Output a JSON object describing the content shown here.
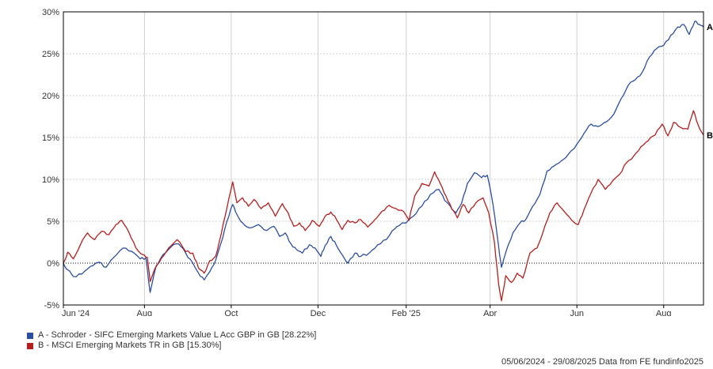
{
  "chart_data": {
    "type": "line",
    "ylim": [
      -5,
      30
    ],
    "yticks": [
      -5,
      0,
      5,
      10,
      15,
      20,
      25,
      30
    ],
    "ytick_labels": [
      "-5%",
      "0%",
      "5%",
      "10%",
      "15%",
      "20%",
      "25%",
      "30%"
    ],
    "xlim": [
      "2024-06-05",
      "2025-08-29"
    ],
    "xticks": [
      {
        "date": "2024-06-05",
        "label": "Jun '24"
      },
      {
        "date": "2024-08-01",
        "label": "Aug"
      },
      {
        "date": "2024-10-01",
        "label": "Oct"
      },
      {
        "date": "2024-12-01",
        "label": "Dec"
      },
      {
        "date": "2025-02-01",
        "label": "Feb '25"
      },
      {
        "date": "2025-04-01",
        "label": "Apr"
      },
      {
        "date": "2025-06-01",
        "label": "Jun"
      },
      {
        "date": "2025-08-01",
        "label": "Aug"
      }
    ],
    "grid": true,
    "zero_line": "dotted",
    "series": [
      {
        "key": "A",
        "name": "A - Schroder - SIFC Emerging Markets Value L Acc GBP in GB [28.22%]",
        "color": "#2b4ea2",
        "end_label": "A",
        "points": [
          [
            "2024-06-05",
            0.0
          ],
          [
            "2024-06-08",
            -0.8
          ],
          [
            "2024-06-12",
            -1.6
          ],
          [
            "2024-06-18",
            -1.3
          ],
          [
            "2024-06-24",
            -0.4
          ],
          [
            "2024-06-30",
            0.1
          ],
          [
            "2024-07-05",
            -0.5
          ],
          [
            "2024-07-10",
            0.6
          ],
          [
            "2024-07-17",
            1.8
          ],
          [
            "2024-07-23",
            1.4
          ],
          [
            "2024-07-29",
            0.5
          ],
          [
            "2024-08-02",
            0.6
          ],
          [
            "2024-08-05",
            -3.5
          ],
          [
            "2024-08-09",
            -0.5
          ],
          [
            "2024-08-14",
            1.0
          ],
          [
            "2024-08-20",
            2.0
          ],
          [
            "2024-08-25",
            2.3
          ],
          [
            "2024-08-30",
            1.2
          ],
          [
            "2024-09-04",
            0.0
          ],
          [
            "2024-09-08",
            -1.2
          ],
          [
            "2024-09-12",
            -2.0
          ],
          [
            "2024-09-16",
            -1.0
          ],
          [
            "2024-09-20",
            0.3
          ],
          [
            "2024-09-25",
            3.0
          ],
          [
            "2024-09-28",
            5.0
          ],
          [
            "2024-10-02",
            7.0
          ],
          [
            "2024-10-05",
            5.8
          ],
          [
            "2024-10-09",
            4.8
          ],
          [
            "2024-10-14",
            4.2
          ],
          [
            "2024-10-20",
            4.6
          ],
          [
            "2024-10-26",
            3.9
          ],
          [
            "2024-10-31",
            4.4
          ],
          [
            "2024-11-04",
            3.2
          ],
          [
            "2024-11-08",
            3.6
          ],
          [
            "2024-11-12",
            2.3
          ],
          [
            "2024-11-16",
            1.6
          ],
          [
            "2024-11-20",
            1.2
          ],
          [
            "2024-11-25",
            2.2
          ],
          [
            "2024-11-29",
            1.8
          ],
          [
            "2024-12-03",
            0.8
          ],
          [
            "2024-12-06",
            2.1
          ],
          [
            "2024-12-10",
            3.2
          ],
          [
            "2024-12-14",
            2.1
          ],
          [
            "2024-12-18",
            1.0
          ],
          [
            "2024-12-22",
            0.0
          ],
          [
            "2024-12-27",
            1.2
          ],
          [
            "2024-12-31",
            0.8
          ],
          [
            "2025-01-06",
            1.2
          ],
          [
            "2025-01-12",
            2.2
          ],
          [
            "2025-01-18",
            2.8
          ],
          [
            "2025-01-24",
            4.1
          ],
          [
            "2025-01-28",
            4.6
          ],
          [
            "2025-02-01",
            4.8
          ],
          [
            "2025-02-06",
            5.6
          ],
          [
            "2025-02-12",
            6.8
          ],
          [
            "2025-02-18",
            8.2
          ],
          [
            "2025-02-24",
            8.8
          ],
          [
            "2025-02-28",
            7.5
          ],
          [
            "2025-03-04",
            6.8
          ],
          [
            "2025-03-08",
            6.0
          ],
          [
            "2025-03-12",
            7.2
          ],
          [
            "2025-03-16",
            9.5
          ],
          [
            "2025-03-21",
            10.8
          ],
          [
            "2025-03-26",
            10.2
          ],
          [
            "2025-03-30",
            10.5
          ],
          [
            "2025-04-03",
            7.0
          ],
          [
            "2025-04-07",
            2.0
          ],
          [
            "2025-04-09",
            -0.5
          ],
          [
            "2025-04-13",
            1.8
          ],
          [
            "2025-04-17",
            3.6
          ],
          [
            "2025-04-22",
            4.8
          ],
          [
            "2025-04-26",
            5.2
          ],
          [
            "2025-05-01",
            6.8
          ],
          [
            "2025-05-06",
            8.2
          ],
          [
            "2025-05-11",
            11.0
          ],
          [
            "2025-05-16",
            11.6
          ],
          [
            "2025-05-21",
            12.2
          ],
          [
            "2025-05-26",
            13.0
          ],
          [
            "2025-06-01",
            14.2
          ],
          [
            "2025-06-06",
            15.5
          ],
          [
            "2025-06-11",
            16.6
          ],
          [
            "2025-06-16",
            16.3
          ],
          [
            "2025-06-22",
            16.9
          ],
          [
            "2025-06-27",
            17.8
          ],
          [
            "2025-07-02",
            19.6
          ],
          [
            "2025-07-07",
            21.2
          ],
          [
            "2025-07-12",
            21.9
          ],
          [
            "2025-07-17",
            22.8
          ],
          [
            "2025-07-22",
            24.6
          ],
          [
            "2025-07-27",
            25.6
          ],
          [
            "2025-08-01",
            26.0
          ],
          [
            "2025-08-06",
            27.2
          ],
          [
            "2025-08-11",
            28.2
          ],
          [
            "2025-08-15",
            28.5
          ],
          [
            "2025-08-19",
            27.3
          ],
          [
            "2025-08-23",
            28.9
          ],
          [
            "2025-08-26",
            28.5
          ],
          [
            "2025-08-29",
            28.2
          ]
        ]
      },
      {
        "key": "B",
        "name": "B - MSCI Emerging Markets TR in GB [15.30%]",
        "color": "#b51e1e",
        "end_label": "B",
        "points": [
          [
            "2024-06-05",
            0.0
          ],
          [
            "2024-06-08",
            1.3
          ],
          [
            "2024-06-12",
            0.5
          ],
          [
            "2024-06-17",
            2.2
          ],
          [
            "2024-06-22",
            3.6
          ],
          [
            "2024-06-27",
            2.8
          ],
          [
            "2024-07-02",
            3.8
          ],
          [
            "2024-07-07",
            3.4
          ],
          [
            "2024-07-12",
            4.6
          ],
          [
            "2024-07-16",
            5.1
          ],
          [
            "2024-07-21",
            3.7
          ],
          [
            "2024-07-26",
            1.8
          ],
          [
            "2024-07-31",
            1.0
          ],
          [
            "2024-08-03",
            0.7
          ],
          [
            "2024-08-05",
            -2.2
          ],
          [
            "2024-08-08",
            -0.8
          ],
          [
            "2024-08-13",
            0.6
          ],
          [
            "2024-08-18",
            1.8
          ],
          [
            "2024-08-24",
            2.8
          ],
          [
            "2024-08-30",
            1.4
          ],
          [
            "2024-09-04",
            1.2
          ],
          [
            "2024-09-08",
            -0.6
          ],
          [
            "2024-09-12",
            -1.2
          ],
          [
            "2024-09-16",
            0.3
          ],
          [
            "2024-09-20",
            0.8
          ],
          [
            "2024-09-24",
            3.5
          ],
          [
            "2024-09-28",
            6.6
          ],
          [
            "2024-10-02",
            9.7
          ],
          [
            "2024-10-05",
            7.2
          ],
          [
            "2024-10-09",
            7.8
          ],
          [
            "2024-10-13",
            6.8
          ],
          [
            "2024-10-17",
            7.6
          ],
          [
            "2024-10-22",
            6.5
          ],
          [
            "2024-10-27",
            7.2
          ],
          [
            "2024-11-01",
            5.6
          ],
          [
            "2024-11-06",
            7.1
          ],
          [
            "2024-11-10",
            6.0
          ],
          [
            "2024-11-14",
            4.4
          ],
          [
            "2024-11-18",
            4.8
          ],
          [
            "2024-11-22",
            3.9
          ],
          [
            "2024-11-27",
            5.1
          ],
          [
            "2024-12-02",
            4.4
          ],
          [
            "2024-12-06",
            5.6
          ],
          [
            "2024-12-10",
            6.1
          ],
          [
            "2024-12-14",
            5.2
          ],
          [
            "2024-12-18",
            4.0
          ],
          [
            "2024-12-22",
            5.1
          ],
          [
            "2024-12-27",
            4.8
          ],
          [
            "2024-12-31",
            5.2
          ],
          [
            "2025-01-05",
            4.3
          ],
          [
            "2025-01-10",
            5.2
          ],
          [
            "2025-01-15",
            6.2
          ],
          [
            "2025-01-20",
            6.9
          ],
          [
            "2025-01-25",
            6.5
          ],
          [
            "2025-01-30",
            6.2
          ],
          [
            "2025-02-03",
            5.1
          ],
          [
            "2025-02-07",
            8.0
          ],
          [
            "2025-02-12",
            9.5
          ],
          [
            "2025-02-17",
            9.2
          ],
          [
            "2025-02-21",
            10.9
          ],
          [
            "2025-02-25",
            9.5
          ],
          [
            "2025-03-01",
            8.0
          ],
          [
            "2025-03-05",
            6.5
          ],
          [
            "2025-03-09",
            5.4
          ],
          [
            "2025-03-13",
            7.0
          ],
          [
            "2025-03-17",
            6.0
          ],
          [
            "2025-03-22",
            7.2
          ],
          [
            "2025-03-27",
            7.8
          ],
          [
            "2025-03-31",
            6.0
          ],
          [
            "2025-04-04",
            2.5
          ],
          [
            "2025-04-07",
            -2.5
          ],
          [
            "2025-04-09",
            -4.5
          ],
          [
            "2025-04-12",
            -1.5
          ],
          [
            "2025-04-16",
            -2.3
          ],
          [
            "2025-04-20",
            -1.2
          ],
          [
            "2025-04-24",
            -1.8
          ],
          [
            "2025-04-29",
            1.2
          ],
          [
            "2025-05-04",
            1.8
          ],
          [
            "2025-05-08",
            3.6
          ],
          [
            "2025-05-13",
            6.0
          ],
          [
            "2025-05-18",
            7.2
          ],
          [
            "2025-05-23",
            6.2
          ],
          [
            "2025-05-28",
            5.2
          ],
          [
            "2025-06-02",
            4.6
          ],
          [
            "2025-06-06",
            6.4
          ],
          [
            "2025-06-11",
            8.4
          ],
          [
            "2025-06-16",
            10.0
          ],
          [
            "2025-06-21",
            8.8
          ],
          [
            "2025-06-26",
            9.8
          ],
          [
            "2025-07-01",
            10.6
          ],
          [
            "2025-07-06",
            12.0
          ],
          [
            "2025-07-11",
            12.8
          ],
          [
            "2025-07-16",
            13.9
          ],
          [
            "2025-07-21",
            14.6
          ],
          [
            "2025-07-26",
            15.3
          ],
          [
            "2025-07-31",
            16.6
          ],
          [
            "2025-08-04",
            15.2
          ],
          [
            "2025-08-08",
            16.8
          ],
          [
            "2025-08-13",
            16.2
          ],
          [
            "2025-08-18",
            16.0
          ],
          [
            "2025-08-22",
            18.2
          ],
          [
            "2025-08-25",
            16.6
          ],
          [
            "2025-08-29",
            15.3
          ]
        ]
      }
    ]
  },
  "footer": {
    "text": "05/06/2024 - 29/08/2025 Data from FE fundinfo2025"
  }
}
